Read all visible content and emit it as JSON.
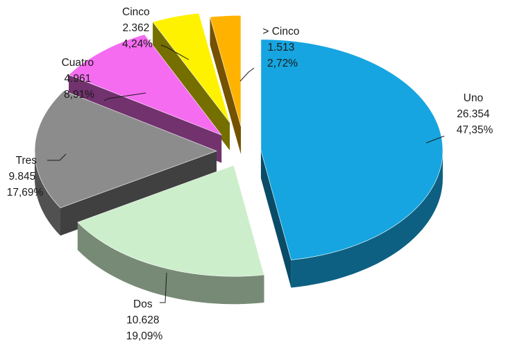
{
  "chart_data": {
    "type": "pie",
    "style": "3d-exploded",
    "title": "",
    "legend": "none",
    "slices": [
      {
        "label": "Uno",
        "value": 26354,
        "value_text": "26.354",
        "percent_text": "47,35%",
        "color": "#16a5e0"
      },
      {
        "label": "Dos",
        "value": 10628,
        "value_text": "10.628",
        "percent_text": "19,09%",
        "color": "#cdeecb"
      },
      {
        "label": "Tres",
        "value": 9845,
        "value_text": "9.845",
        "percent_text": "17,69%",
        "color": "#8c8c8c"
      },
      {
        "label": "Cuatro",
        "value": 4961,
        "value_text": "4.961",
        "percent_text": "8,91%",
        "color": "#f56cf0"
      },
      {
        "label": "Cinco",
        "value": 2362,
        "value_text": "2.362",
        "percent_text": "4,24%",
        "color": "#fff200"
      },
      {
        "label": "> Cinco",
        "value": 1513,
        "value_text": "1.513",
        "percent_text": "2,72%",
        "color": "#ffb300"
      }
    ]
  }
}
